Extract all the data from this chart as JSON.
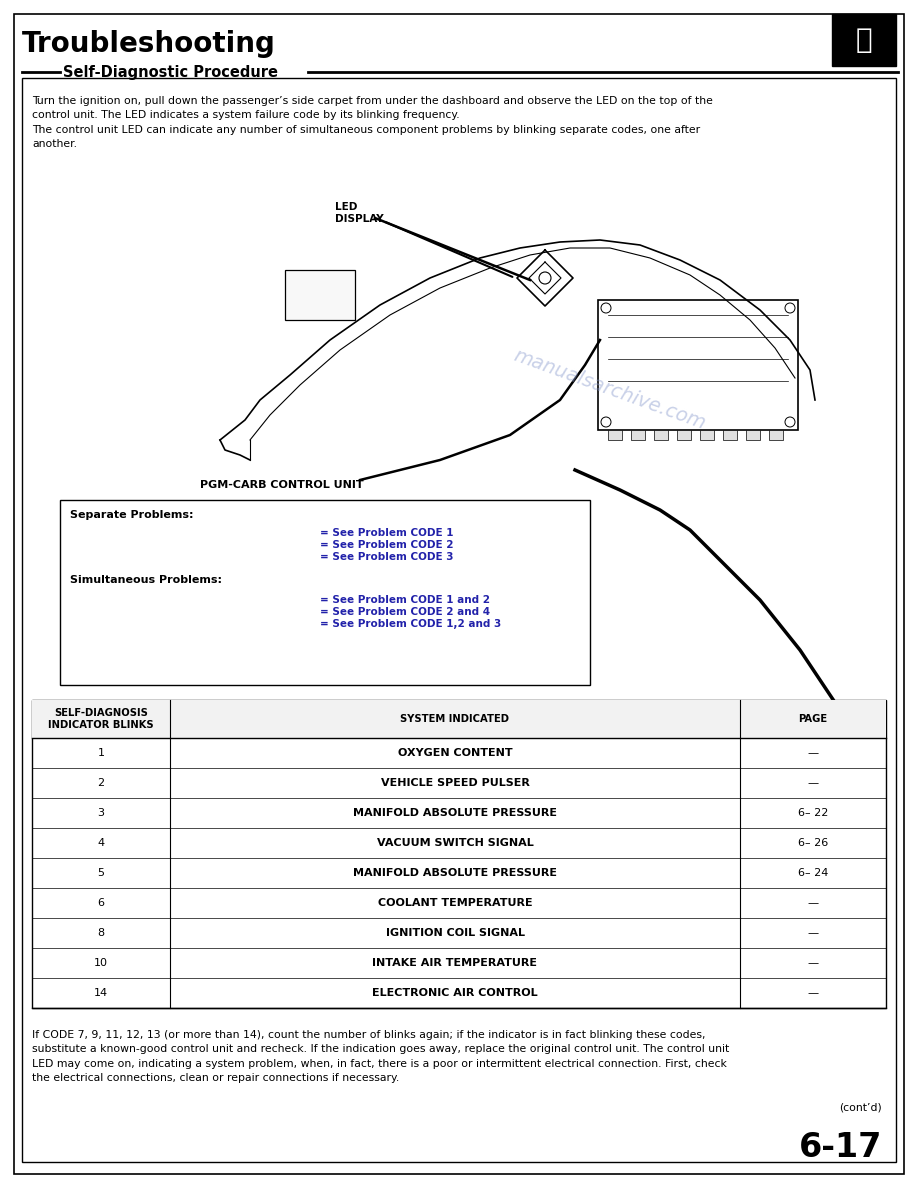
{
  "title": "Troubleshooting",
  "subtitle": "Self-Diagnostic Procedure",
  "page_bg": "#ffffff",
  "page_number": "6-17",
  "intro_text": "Turn the ignition on, pull down the passenger’s side carpet from under the dashboard and observe the LED on the top of the\ncontrol unit. The LED indicates a system failure code by its blinking frequency.\nThe control unit LED can indicate any number of simultaneous component problems by blinking separate codes, one after\nanother.",
  "led_label": "LED\nDISPLAY",
  "pgm_label": "PGM-CARB CONTROL UNIT",
  "table_header": [
    "SELF-DIAGNOSIS\nINDICATOR BLINKS",
    "SYSTEM INDICATED",
    "PAGE"
  ],
  "table_rows": [
    [
      "1",
      "OXYGEN CONTENT",
      "—"
    ],
    [
      "2",
      "VEHICLE SPEED PULSER",
      "—"
    ],
    [
      "3",
      "MANIFOLD ABSOLUTE PRESSURE",
      "6– 22"
    ],
    [
      "4",
      "VACUUM SWITCH SIGNAL",
      "6– 26"
    ],
    [
      "5",
      "MANIFOLD ABSOLUTE PRESSURE",
      "6– 24"
    ],
    [
      "6",
      "COOLANT TEMPERATURE",
      "—"
    ],
    [
      "8",
      "IGNITION COIL SIGNAL",
      "—"
    ],
    [
      "10",
      "INTAKE AIR TEMPERATURE",
      "—"
    ],
    [
      "14",
      "ELECTRONIC AIR CONTROL",
      "—"
    ]
  ],
  "footer_text": "If CODE 7, 9, 11, 12, 13 (or more than 14), count the number of blinks again; if the indicator is in fact blinking these codes,\nsubstitute a known-good control unit and recheck. If the indication goes away, replace the original control unit. The control unit\nLED may come on, indicating a system problem, when, in fact, there is a poor or intermittent electrical connection. First, check\nthe electrical connections, clean or repair connections if necessary.",
  "contd": "(cont’d)",
  "watermark": "manualsarchive.com",
  "separate_label": "Separate Problems:",
  "simultaneous_label": "Simultaneous Problems:",
  "sep_codes": [
    "= See Problem CODE 1",
    "= See Problem CODE 2",
    "= See Problem CODE 3"
  ],
  "sim_codes": [
    "= See Problem CODE 1 and 2",
    "= See Problem CODE 2 and 4",
    "= See Problem CODE 1,2 and 3"
  ]
}
